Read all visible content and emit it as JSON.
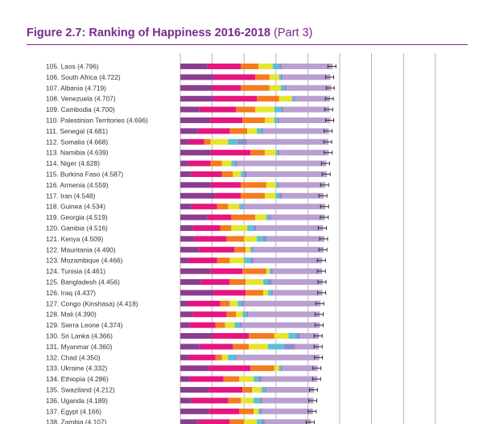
{
  "figure": {
    "title_bold": "Figure 2.7: Ranking of Happiness 2016-2018",
    "title_part": "(Part 3)"
  },
  "colors": {
    "title": "#7b2a8e",
    "gridline": "#999999",
    "error_bar": "#333333"
  },
  "chart_data": {
    "type": "bar",
    "orientation": "horizontal",
    "stacked": true,
    "gridlines": true,
    "error_bars": true,
    "segment_colors": [
      "#8b3d91",
      "#e6157f",
      "#f47b20",
      "#e5e52c",
      "#5bc1d6",
      "#8d8dce",
      "#b9a0d0"
    ],
    "rows": [
      {
        "label": "105. Laos (4.796)",
        "value": 4.796,
        "segments": [
          0.85,
          1.05,
          0.55,
          0.45,
          0.2,
          0.08,
          1.6
        ]
      },
      {
        "label": "106. South Africa (4.722)",
        "value": 4.722,
        "segments": [
          1.05,
          1.3,
          0.45,
          0.3,
          0.05,
          0.06,
          1.5
        ]
      },
      {
        "label": "107. Albania (4.719)",
        "value": 4.719,
        "segments": [
          1.0,
          0.9,
          0.9,
          0.35,
          0.12,
          0.06,
          1.4
        ]
      },
      {
        "label": "108. Venezuela (4.707)",
        "value": 4.707,
        "segments": [
          1.05,
          1.35,
          0.7,
          0.4,
          0.05,
          0.05,
          1.1
        ]
      },
      {
        "label": "109. Cambodia (4.700)",
        "value": 4.7,
        "segments": [
          0.6,
          1.15,
          0.6,
          0.6,
          0.2,
          0.08,
          1.45
        ]
      },
      {
        "label": "110. Palestinian Territories (4.696)",
        "value": 4.696,
        "segments": [
          0.95,
          1.0,
          0.7,
          0.3,
          0.1,
          0.06,
          1.6
        ]
      },
      {
        "label": "111. Senegal (4.681)",
        "value": 4.681,
        "segments": [
          0.55,
          1.0,
          0.55,
          0.3,
          0.15,
          0.06,
          2.05
        ]
      },
      {
        "label": "112. Somalia (4.668)",
        "value": 4.668,
        "segments": [
          0.25,
          0.5,
          0.2,
          0.55,
          0.3,
          0.3,
          2.55
        ]
      },
      {
        "label": "113. Namibia (4.639)",
        "value": 4.639,
        "segments": [
          0.95,
          1.25,
          0.45,
          0.35,
          0.05,
          0.06,
          1.55
        ]
      },
      {
        "label": "114. Niger (4.628)",
        "value": 4.628,
        "segments": [
          0.25,
          0.7,
          0.35,
          0.3,
          0.12,
          0.06,
          2.8
        ]
      },
      {
        "label": "115. Burkina Faso (4.587)",
        "value": 4.587,
        "segments": [
          0.35,
          0.95,
          0.35,
          0.25,
          0.1,
          0.1,
          2.5
        ]
      },
      {
        "label": "116. Armenia (4.559)",
        "value": 4.559,
        "segments": [
          0.95,
          0.95,
          0.8,
          0.3,
          0.05,
          0.05,
          1.45
        ]
      },
      {
        "label": "117. Iran (4.548)",
        "value": 4.548,
        "segments": [
          1.1,
          0.8,
          0.75,
          0.35,
          0.1,
          0.1,
          1.3
        ]
      },
      {
        "label": "118. Guinea (4.534)",
        "value": 4.534,
        "segments": [
          0.35,
          0.8,
          0.35,
          0.35,
          0.1,
          0.05,
          2.55
        ]
      },
      {
        "label": "119. Georgia (4.519)",
        "value": 4.519,
        "segments": [
          0.85,
          0.75,
          0.75,
          0.35,
          0.08,
          0.06,
          1.7
        ]
      },
      {
        "label": "120. Gambia (4.516)",
        "value": 4.516,
        "segments": [
          0.4,
          0.85,
          0.35,
          0.5,
          0.2,
          0.08,
          2.1
        ]
      },
      {
        "label": "121. Kenya (4.509)",
        "value": 4.509,
        "segments": [
          0.45,
          1.0,
          0.55,
          0.4,
          0.2,
          0.12,
          1.8
        ]
      },
      {
        "label": "122. Mauritania (4.490)",
        "value": 4.49,
        "segments": [
          0.6,
          1.1,
          0.35,
          0.15,
          0.05,
          0.05,
          2.2
        ]
      },
      {
        "label": "123. Mozambique (4.466)",
        "value": 4.466,
        "segments": [
          0.25,
          0.9,
          0.4,
          0.45,
          0.2,
          0.1,
          2.15
        ]
      },
      {
        "label": "124. Tunisia (4.461)",
        "value": 4.461,
        "segments": [
          0.95,
          1.0,
          0.75,
          0.1,
          0.05,
          0.05,
          1.55
        ]
      },
      {
        "label": "125. Bangladesh (4.456)",
        "value": 4.456,
        "segments": [
          0.65,
          0.9,
          0.5,
          0.55,
          0.15,
          0.12,
          1.6
        ]
      },
      {
        "label": "126. Iraq (4.437)",
        "value": 4.437,
        "segments": [
          1.05,
          1.0,
          0.55,
          0.15,
          0.1,
          0.06,
          1.55
        ]
      },
      {
        "label": "127. Congo (Kinshasa) (4.418)",
        "value": 4.418,
        "segments": [
          0.25,
          1.0,
          0.3,
          0.25,
          0.12,
          0.08,
          2.4
        ]
      },
      {
        "label": "128. Mali (4.390)",
        "value": 4.39,
        "segments": [
          0.4,
          1.05,
          0.3,
          0.2,
          0.12,
          0.06,
          2.25
        ]
      },
      {
        "label": "129. Sierra Leone (4.374)",
        "value": 4.374,
        "segments": [
          0.3,
          0.8,
          0.3,
          0.3,
          0.15,
          0.08,
          2.45
        ]
      },
      {
        "label": "130. Sri Lanka (4.366)",
        "value": 4.366,
        "segments": [
          1.0,
          1.15,
          0.8,
          0.45,
          0.25,
          0.1,
          0.6
        ]
      },
      {
        "label": "131. Myanmar (4.360)",
        "value": 4.36,
        "segments": [
          0.6,
          1.05,
          0.5,
          0.6,
          0.5,
          0.35,
          0.75
        ]
      },
      {
        "label": "132. Chad (4.350)",
        "value": 4.35,
        "segments": [
          0.25,
          0.85,
          0.2,
          0.2,
          0.2,
          0.06,
          2.6
        ]
      },
      {
        "label": "133. Ukraine (4.332)",
        "value": 4.332,
        "segments": [
          0.9,
          1.3,
          0.75,
          0.15,
          0.05,
          0.06,
          1.1
        ]
      },
      {
        "label": "134. Ethiopia (4.286)",
        "value": 4.286,
        "segments": [
          0.3,
          1.05,
          0.5,
          0.45,
          0.15,
          0.1,
          1.75
        ]
      },
      {
        "label": "135. Swaziland (4.212)",
        "value": 4.212,
        "segments": [
          0.9,
          1.05,
          0.3,
          0.3,
          0.1,
          0.05,
          1.5
        ]
      },
      {
        "label": "136. Uganda (4.189)",
        "value": 4.189,
        "segments": [
          0.35,
          1.15,
          0.4,
          0.4,
          0.2,
          0.08,
          1.6
        ]
      },
      {
        "label": "137. Egypt (4.166)",
        "value": 4.166,
        "segments": [
          0.9,
          0.95,
          0.45,
          0.15,
          0.05,
          0.06,
          1.6
        ]
      },
      {
        "label": "138. Zambia (4.107)",
        "value": 4.107,
        "segments": [
          0.55,
          1.0,
          0.45,
          0.4,
          0.15,
          0.1,
          1.45
        ]
      }
    ]
  }
}
